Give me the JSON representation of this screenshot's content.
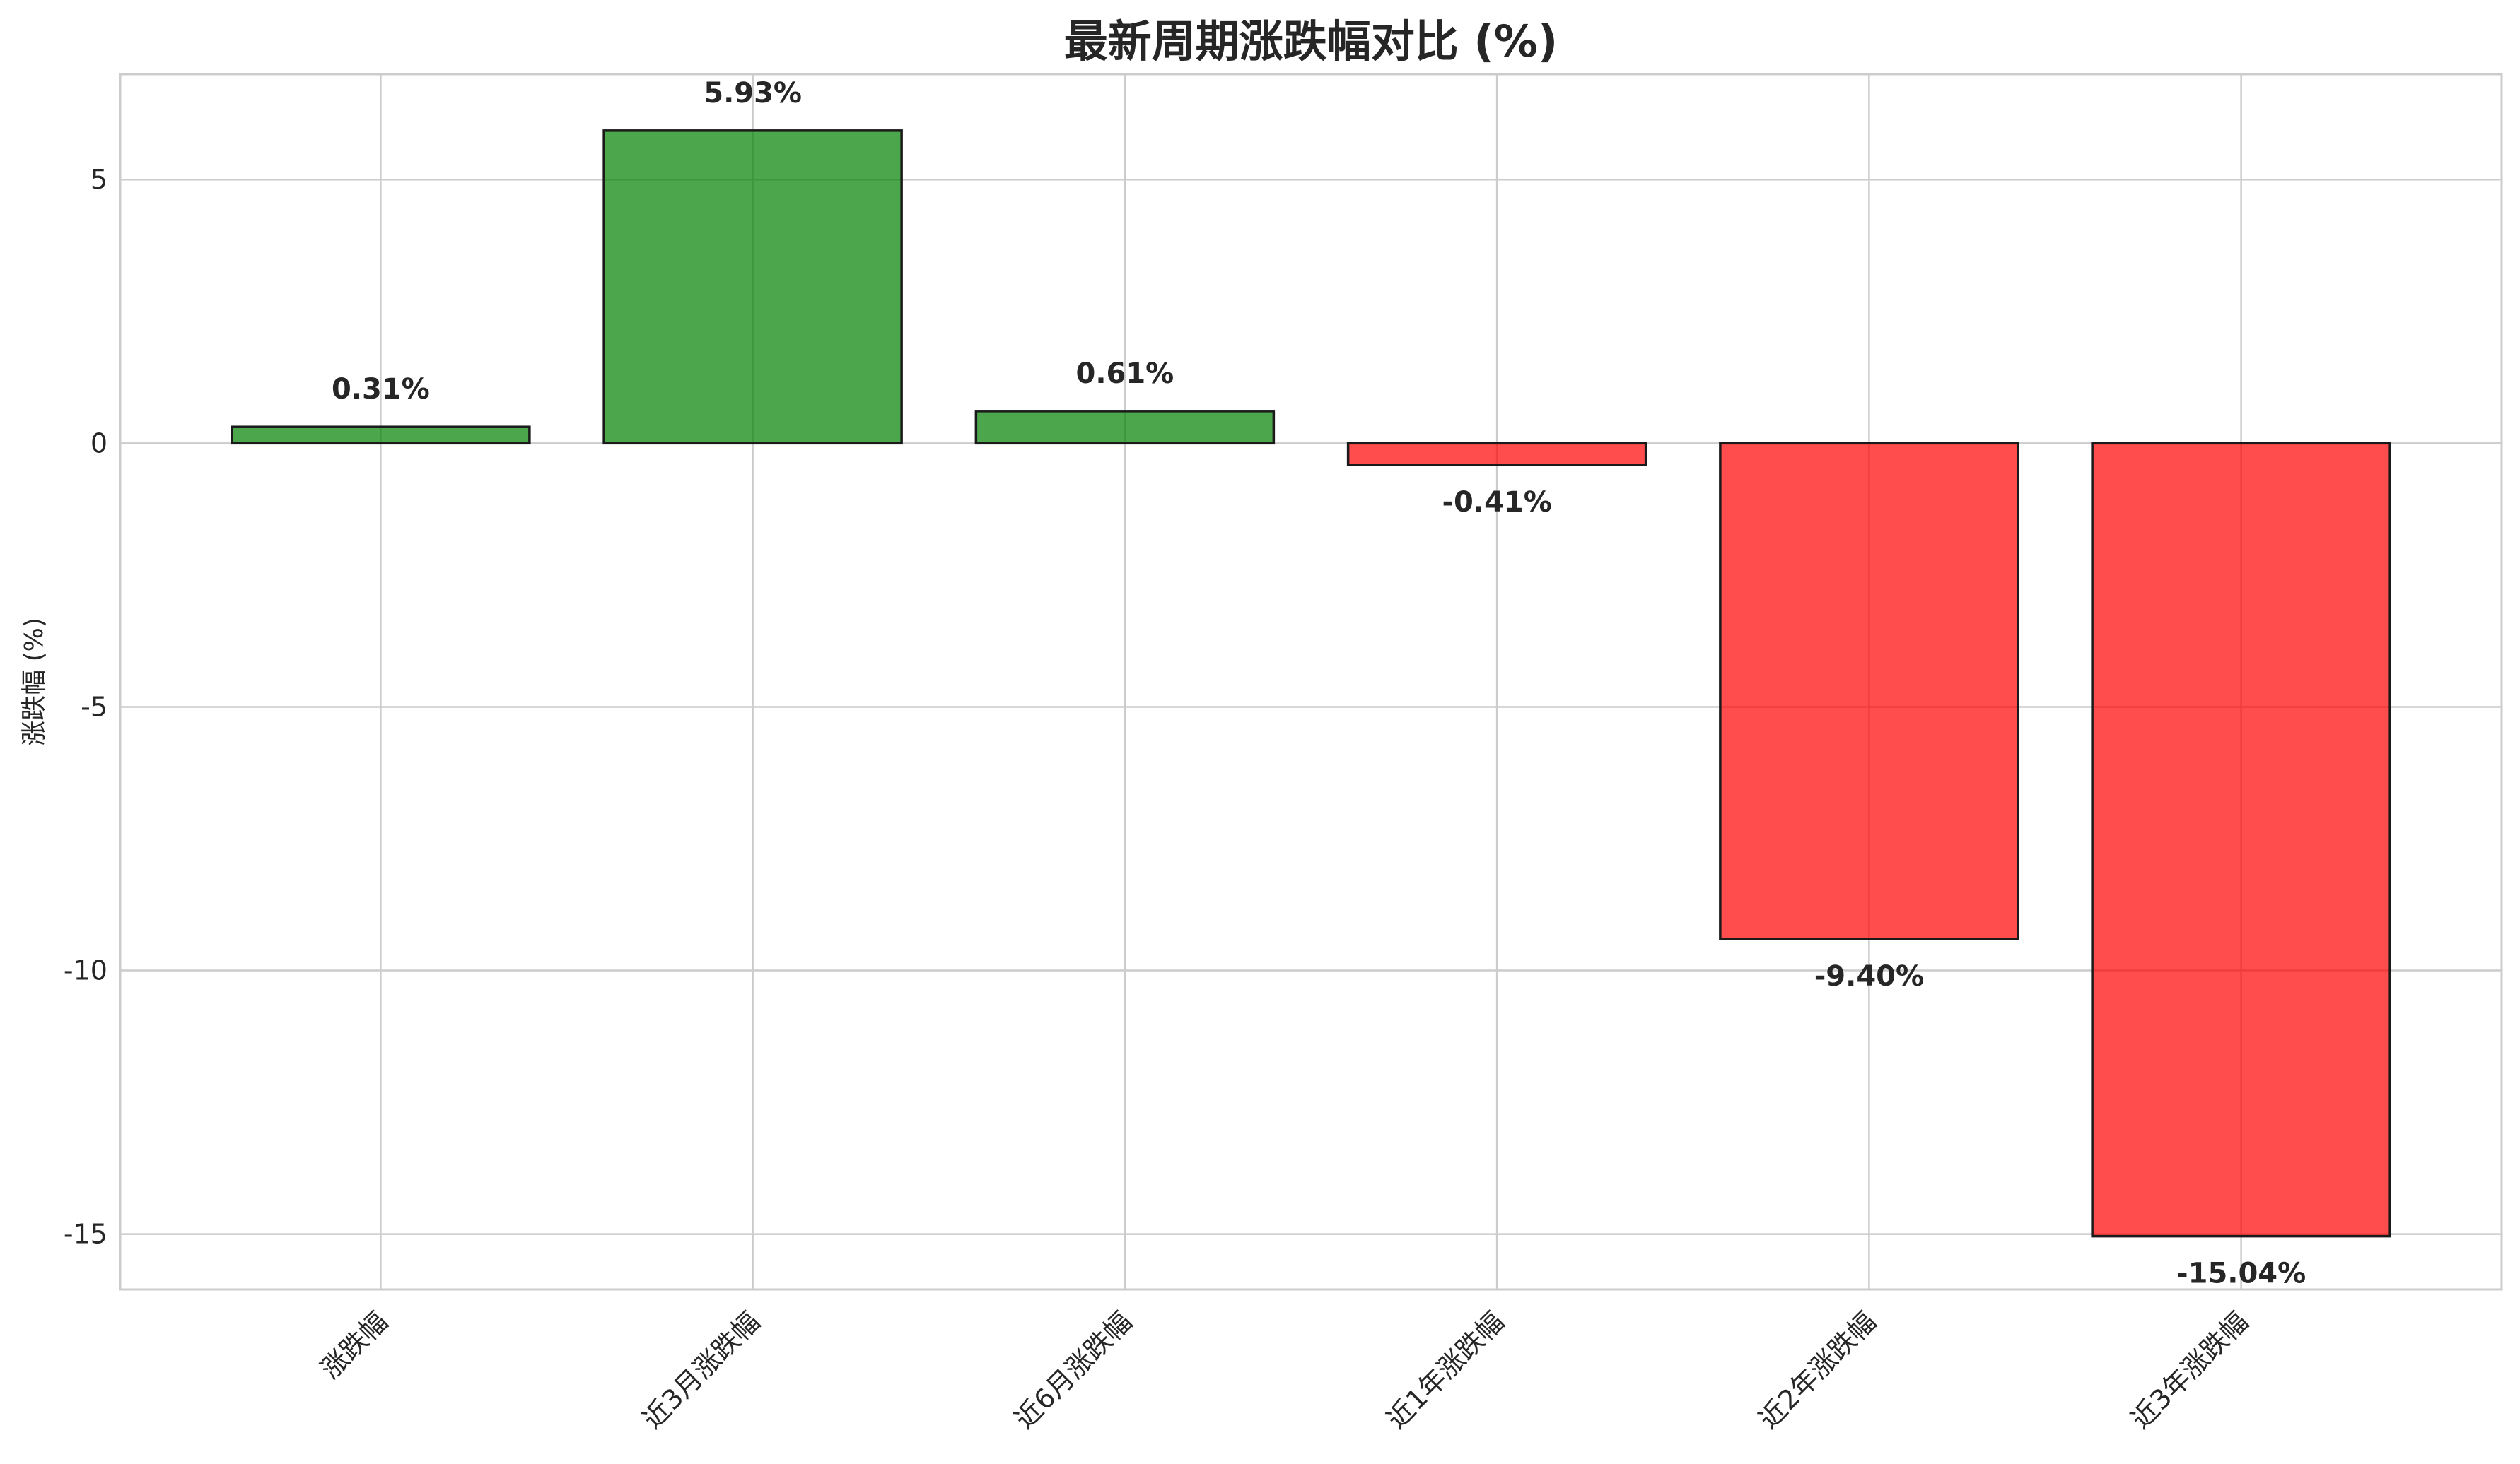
{
  "chart_data": {
    "type": "bar",
    "title": "最新周期涨跌幅对比 (%)",
    "xlabel": "",
    "ylabel": "涨跌幅 (%)",
    "categories": [
      "涨跌幅",
      "近3月涨跌幅",
      "近6月涨跌幅",
      "近1年涨跌幅",
      "近2年涨跌幅",
      "近3年涨跌幅"
    ],
    "values": [
      0.31,
      5.93,
      0.61,
      -0.41,
      -9.4,
      -15.04
    ],
    "value_labels": [
      "0.31%",
      "5.93%",
      "0.61%",
      "-0.41%",
      "-9.40%",
      "-15.04%"
    ],
    "ylim": [
      -16.05,
      7.0
    ],
    "yticks": [
      5,
      0,
      -5,
      -10,
      -15
    ],
    "ytick_labels": [
      "5",
      "0",
      "-5",
      "-10",
      "-15"
    ],
    "grid": true,
    "colors": {
      "positive": "#008000",
      "negative": "#ff0000"
    }
  }
}
